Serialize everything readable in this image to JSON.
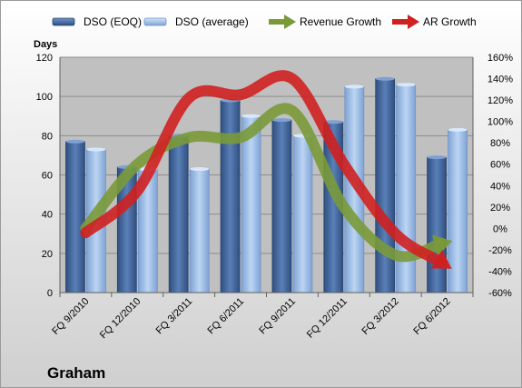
{
  "company_label": "Graham",
  "chart_data": {
    "type": "bar",
    "categories": [
      "FQ 9/2010",
      "FQ 12/2010",
      "FQ 3/2011",
      "FQ 6/2011",
      "FQ 9/2011",
      "FQ 12/2011",
      "FQ 3/2012",
      "FQ 6/2012"
    ],
    "y_axis_label": "Days",
    "ylim": [
      0,
      120
    ],
    "y_ticks": [
      0,
      20,
      40,
      60,
      80,
      100,
      120
    ],
    "y2lim": [
      -60,
      160
    ],
    "y2_ticks": [
      "-60%",
      "-40%",
      "-20%",
      "0%",
      "20%",
      "40%",
      "60%",
      "80%",
      "100%",
      "120%",
      "140%",
      "160%"
    ],
    "legend_position": "top",
    "grid": "horizontal",
    "series": [
      {
        "name": "DSO (EOQ)",
        "kind": "bar",
        "axis": "left",
        "color": "#4a6fa5",
        "values": [
          77,
          64,
          80,
          98,
          88,
          87,
          109,
          69
        ]
      },
      {
        "name": "DSO (average)",
        "kind": "bar",
        "axis": "left",
        "color": "#9dbde6",
        "values": [
          73,
          63,
          63,
          90,
          80,
          105,
          106,
          83
        ]
      },
      {
        "name": "Revenue Growth",
        "kind": "arrow",
        "axis": "right",
        "color": "#7a9a3a",
        "values": [
          0,
          60,
          85,
          85,
          110,
          20,
          -25,
          -13
        ]
      },
      {
        "name": "AR Growth",
        "kind": "arrow",
        "axis": "right",
        "color": "#d02020",
        "values": [
          -4,
          35,
          122,
          125,
          140,
          60,
          -5,
          -35
        ]
      }
    ]
  }
}
